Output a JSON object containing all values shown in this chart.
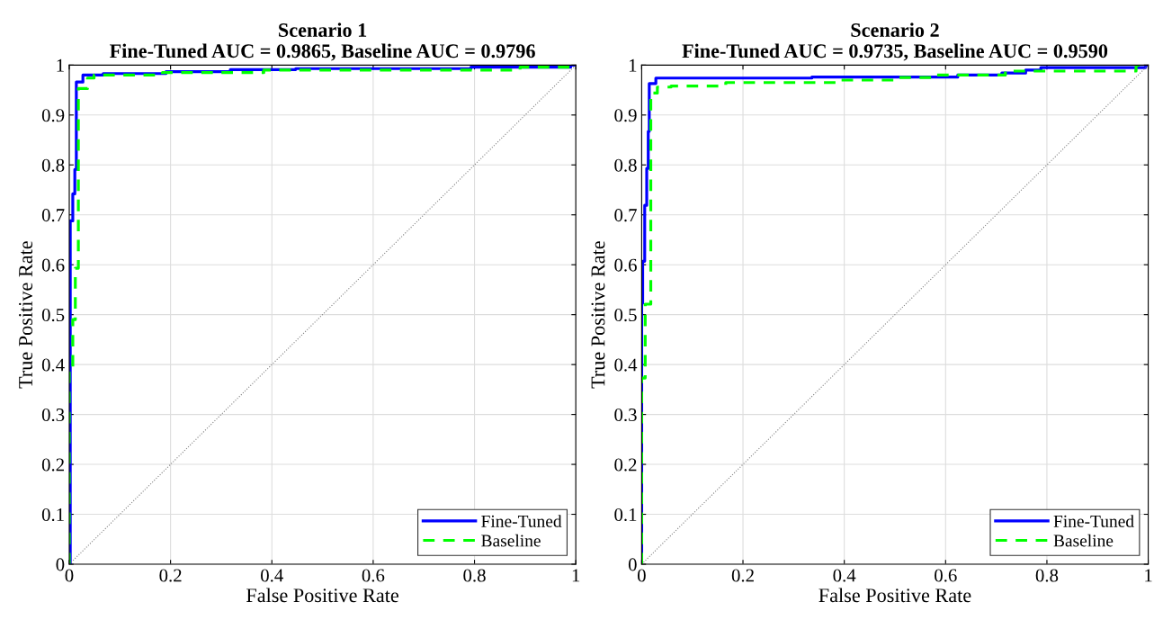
{
  "chart_data": [
    {
      "type": "step",
      "title": "Scenario 1\nFine-Tuned AUC = 0.9865, Baseline AUC = 0.9796",
      "xlabel": "False Positive Rate",
      "ylabel": "True Positive Rate",
      "xlim": [
        0,
        1
      ],
      "ylim": [
        0,
        1
      ],
      "xticks": [
        0,
        0.2,
        0.4,
        0.6,
        0.8,
        1
      ],
      "yticks": [
        0,
        0.1,
        0.2,
        0.3,
        0.4,
        0.5,
        0.6,
        0.7,
        0.8,
        0.9,
        1
      ],
      "grid": true,
      "legend": "bottom right",
      "series": [
        {
          "name": "Fine-Tuned",
          "color": "#0000ff",
          "line_style": "solid",
          "x": [
            0,
            0.002,
            0.002,
            0.007,
            0.007,
            0.011,
            0.011,
            0.014,
            0.014,
            0.027,
            0.027,
            0.067,
            0.067,
            0.191,
            0.191,
            0.318,
            0.318,
            0.447,
            0.447,
            0.793,
            0.793,
            0.99,
            0.99,
            1
          ],
          "values": [
            0,
            0,
            0.688,
            0.688,
            0.742,
            0.742,
            0.791,
            0.791,
            0.966,
            0.966,
            0.98,
            0.98,
            0.983,
            0.983,
            0.987,
            0.987,
            0.991,
            0.991,
            0.993,
            0.993,
            0.996,
            0.996,
            1,
            1
          ]
        },
        {
          "name": "Baseline",
          "color": "#00ff00",
          "line_style": "dashed",
          "x": [
            0,
            0,
            0.007,
            0.007,
            0.012,
            0.012,
            0.018,
            0.018,
            0.036,
            0.036,
            0.049,
            0.049,
            0.184,
            0.184,
            0.384,
            0.384,
            0.89,
            0.89,
            1
          ],
          "values": [
            0,
            0.39,
            0.39,
            0.49,
            0.49,
            0.593,
            0.593,
            0.953,
            0.953,
            0.974,
            0.974,
            0.98,
            0.98,
            0.985,
            0.985,
            0.99,
            0.99,
            0.996,
            1
          ]
        },
        {
          "type": "line",
          "color": "#808080",
          "line_style": "dotted",
          "x": [
            0,
            1
          ],
          "values": [
            0,
            1
          ]
        }
      ]
    },
    {
      "type": "step",
      "title": "Scenario 2\nFine-Tuned AUC = 0.9735, Baseline AUC = 0.9590",
      "xlabel": "False Positive Rate",
      "ylabel": "True Positive Rate",
      "xlim": [
        0,
        1
      ],
      "ylim": [
        0,
        1
      ],
      "xticks": [
        0,
        0.2,
        0.4,
        0.6,
        0.8,
        1
      ],
      "yticks": [
        0,
        0.1,
        0.2,
        0.3,
        0.4,
        0.5,
        0.6,
        0.7,
        0.8,
        0.9,
        1
      ],
      "grid": true,
      "legend": "bottom right",
      "series": [
        {
          "name": "Fine-Tuned",
          "color": "#0000ff",
          "line_style": "solid",
          "x": [
            0,
            0,
            0.002,
            0.002,
            0.006,
            0.006,
            0.01,
            0.01,
            0.013,
            0.013,
            0.015,
            0.015,
            0.028,
            0.028,
            0.336,
            0.336,
            0.624,
            0.624,
            0.711,
            0.711,
            0.758,
            0.758,
            0.788,
            0.788,
            0.995,
            0.995,
            1
          ],
          "values": [
            0,
            0.523,
            0.523,
            0.607,
            0.607,
            0.719,
            0.719,
            0.793,
            0.793,
            0.867,
            0.867,
            0.963,
            0.963,
            0.974,
            0.974,
            0.976,
            0.976,
            0.98,
            0.98,
            0.984,
            0.984,
            0.99,
            0.99,
            0.995,
            0.995,
            1,
            1
          ]
        },
        {
          "name": "Baseline",
          "color": "#00ff00",
          "line_style": "dashed",
          "x": [
            0,
            0,
            0.007,
            0.007,
            0.018,
            0.018,
            0.031,
            0.031,
            0.058,
            0.058,
            0.166,
            0.166,
            0.39,
            0.39,
            0.507,
            0.507,
            0.573,
            0.573,
            0.718,
            0.718,
            0.976,
            0.976,
            1
          ],
          "values": [
            0,
            0.373,
            0.373,
            0.521,
            0.521,
            0.944,
            0.944,
            0.956,
            0.956,
            0.958,
            0.958,
            0.965,
            0.965,
            0.97,
            0.97,
            0.975,
            0.975,
            0.98,
            0.98,
            0.988,
            0.988,
            1,
            1
          ]
        },
        {
          "type": "line",
          "color": "#808080",
          "line_style": "dotted",
          "x": [
            0,
            1
          ],
          "values": [
            0,
            1
          ]
        }
      ]
    }
  ]
}
